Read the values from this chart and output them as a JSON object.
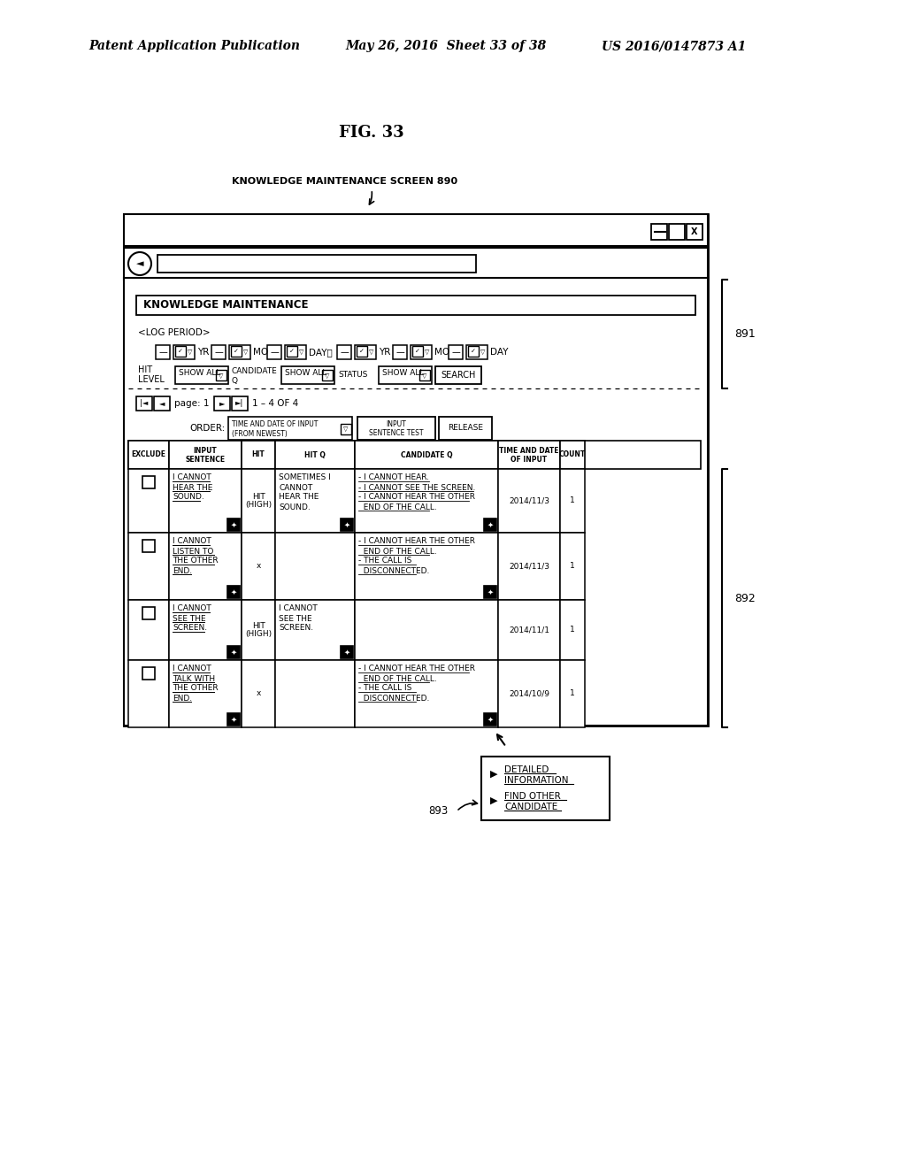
{
  "title_header": "Patent Application Publication",
  "date_header": "May 26, 2016  Sheet 33 of 38",
  "patent_header": "US 2016/0147873 A1",
  "fig_label": "FIG. 33",
  "screen_label": "KNOWLEDGE MAINTENANCE SCREEN 890",
  "label_891": "891",
  "label_892": "892",
  "label_893": "893",
  "bg_color": "#ffffff"
}
